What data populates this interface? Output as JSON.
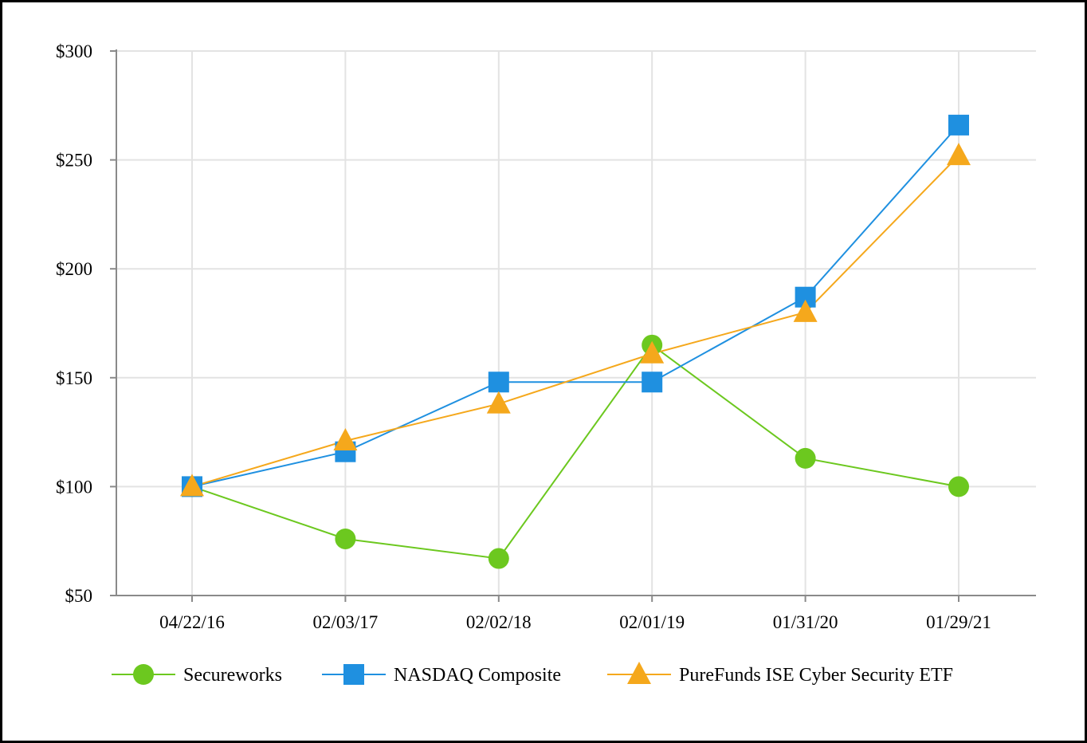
{
  "chart_data": {
    "type": "line",
    "title": "",
    "xlabel": "",
    "ylabel": "",
    "categories": [
      "04/22/16",
      "02/03/17",
      "02/02/18",
      "02/01/19",
      "01/31/20",
      "01/29/21"
    ],
    "y_ticks": [
      "$50",
      "$100",
      "$150",
      "$200",
      "$250",
      "$300"
    ],
    "y_tick_values": [
      50,
      100,
      150,
      200,
      250,
      300
    ],
    "ylim": [
      50,
      300
    ],
    "grid": true,
    "legend_position": "bottom",
    "series": [
      {
        "name": "Secureworks",
        "marker": "circle",
        "color": "#6cc81f",
        "values": [
          100,
          76,
          67,
          165,
          113,
          100
        ]
      },
      {
        "name": "NASDAQ Composite",
        "marker": "square",
        "color": "#1f90e0",
        "values": [
          100,
          116,
          148,
          148,
          187,
          266
        ]
      },
      {
        "name": "PureFunds ISE Cyber Security ETF",
        "marker": "triangle",
        "color": "#f5a81c",
        "values": [
          100,
          121,
          138,
          161,
          180,
          252
        ]
      }
    ]
  }
}
